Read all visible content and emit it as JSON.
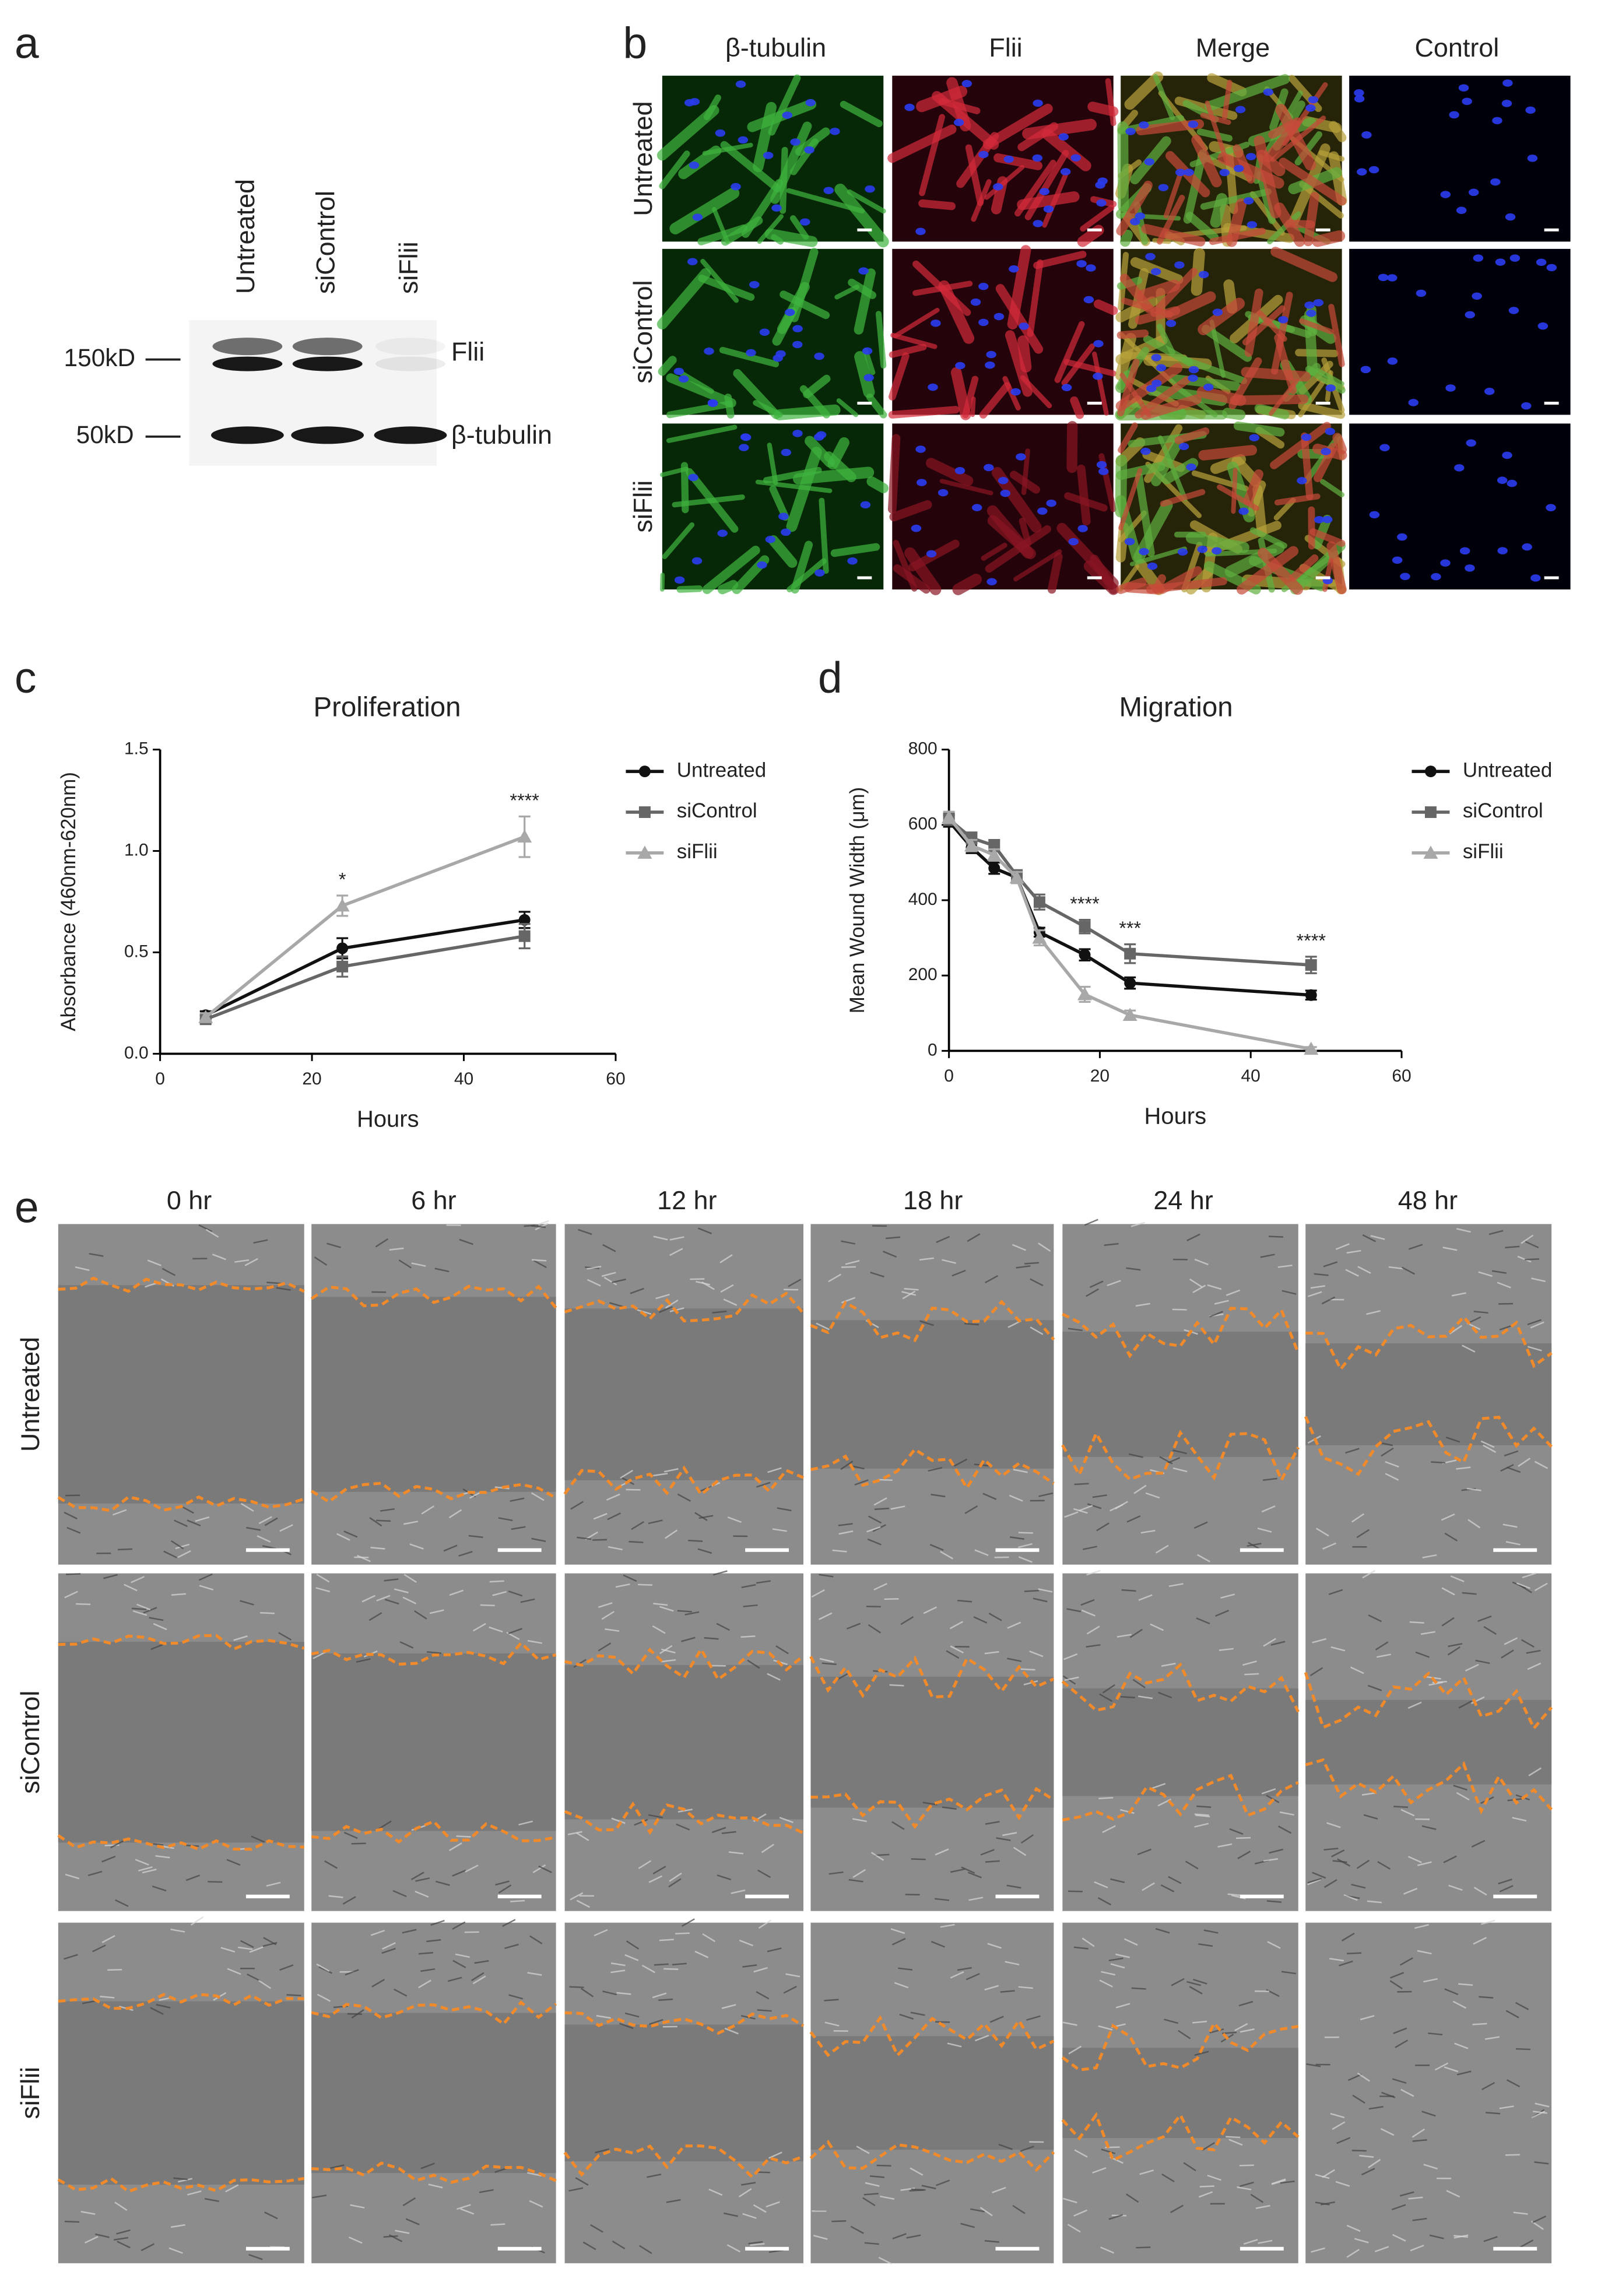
{
  "panels": {
    "a": {
      "label": "a",
      "lanes": [
        "Untreated",
        "siControl",
        "siFlii"
      ],
      "markers": [
        {
          "size": "150kD",
          "protein": "Flii"
        },
        {
          "size": "50kD",
          "protein": "β-tubulin"
        }
      ]
    },
    "b": {
      "label": "b",
      "columns": [
        "β-tubulin",
        "Flii",
        "Merge",
        "Control"
      ],
      "rows": [
        "Untreated",
        "siControl",
        "siFlii"
      ]
    },
    "c": {
      "label": "c"
    },
    "d": {
      "label": "d"
    },
    "e": {
      "label": "e",
      "columns": [
        "0 hr",
        "6 hr",
        "12 hr",
        "18 hr",
        "24 hr",
        "48 hr"
      ],
      "rows": [
        "Untreated",
        "siControl",
        "siFlii"
      ]
    }
  },
  "chart_data": [
    {
      "type": "line",
      "title": "Proliferation",
      "x_label": "Hours",
      "y_label": "Absorbance (460nm-620nm)",
      "x": [
        6,
        24,
        48
      ],
      "xlim": [
        0,
        60
      ],
      "xticks": [
        0,
        20,
        40,
        60
      ],
      "ylim": [
        0,
        1.5
      ],
      "yticks": [
        {
          "value": 0,
          "label": "0.0"
        },
        0.5,
        {
          "value": 1,
          "label": "1.0"
        },
        1.5
      ],
      "legend": "right",
      "series": [
        {
          "name": "Untreated",
          "color": "#111111",
          "marker": "circle",
          "values": [
            0.19,
            0.52,
            0.66
          ],
          "errors": [
            0.02,
            0.05,
            0.04
          ]
        },
        {
          "name": "siControl",
          "color": "#666666",
          "marker": "square",
          "values": [
            0.17,
            0.43,
            0.58
          ],
          "errors": [
            0.02,
            0.05,
            0.06
          ]
        },
        {
          "name": "siFlii",
          "color": "#a8a8a8",
          "marker": "triangle",
          "values": [
            0.18,
            0.73,
            1.07
          ],
          "errors": [
            0.02,
            0.05,
            0.1
          ]
        }
      ],
      "annotations": [
        {
          "text": "*",
          "x": 24
        },
        {
          "text": "****",
          "x": 48
        }
      ]
    },
    {
      "type": "line",
      "title": "Migration",
      "x_label": "Hours",
      "y_label": "Mean Wound Width (μm)",
      "x": [
        0,
        3,
        6,
        9,
        12,
        18,
        24,
        48
      ],
      "xlim": [
        0,
        60
      ],
      "xticks": [
        0,
        20,
        40,
        60
      ],
      "ylim": [
        0,
        800
      ],
      "yticks": [
        0,
        200,
        400,
        600,
        800
      ],
      "legend": "right",
      "series": [
        {
          "name": "Untreated",
          "color": "#111111",
          "marker": "circle",
          "values": [
            610,
            540,
            485,
            460,
            315,
            255,
            180,
            148
          ],
          "errors": [
            15,
            15,
            15,
            15,
            12,
            15,
            15,
            12
          ]
        },
        {
          "name": "siControl",
          "color": "#666666",
          "marker": "square",
          "values": [
            615,
            565,
            545,
            465,
            395,
            330,
            258,
            228
          ],
          "errors": [
            15,
            15,
            15,
            15,
            20,
            18,
            25,
            22
          ]
        },
        {
          "name": "siFlii",
          "color": "#a8a8a8",
          "marker": "triangle",
          "values": [
            620,
            545,
            520,
            460,
            300,
            150,
            95,
            5
          ],
          "errors": [
            15,
            15,
            15,
            15,
            20,
            20,
            12,
            5
          ]
        }
      ],
      "annotations": [
        {
          "text": "****",
          "x": 18
        },
        {
          "text": "***",
          "x": 24
        },
        {
          "text": "****",
          "x": 48
        }
      ]
    }
  ]
}
